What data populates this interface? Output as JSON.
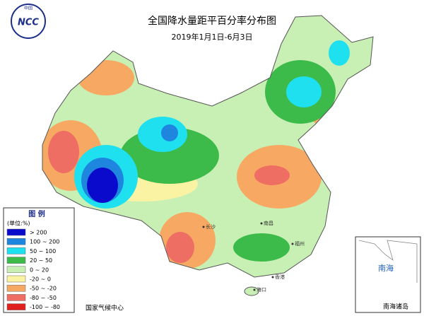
{
  "header": {
    "title": "全国降水量距平百分率分布图",
    "subtitle": "2019年1月1日-6月3日"
  },
  "logo": {
    "text": "NCC",
    "top": "中国"
  },
  "legend": {
    "title": "图 例",
    "unit": "(单位:%)",
    "items": [
      {
        "label": "> 200",
        "color": "#0a0acd"
      },
      {
        "label": "100 ~ 200",
        "color": "#1f86e0"
      },
      {
        "label": "50 ~ 100",
        "color": "#1fe0ee"
      },
      {
        "label": "20 ~ 50",
        "color": "#3dbb4a"
      },
      {
        "label": "0 ~ 20",
        "color": "#c9f0b4"
      },
      {
        "label": "-20 ~ 0",
        "color": "#fbf3a4"
      },
      {
        "label": "-50 ~ -20",
        "color": "#f7a963"
      },
      {
        "label": "-80 ~ -50",
        "color": "#ee6e64"
      },
      {
        "label": "-100 ~ -80",
        "color": "#e0201c"
      }
    ]
  },
  "cities": [
    "长沙",
    "南昌",
    "福州",
    "香港",
    "海口"
  ],
  "inset": {
    "sea": "南海",
    "islands": "南海诸岛"
  },
  "footer": "国家气候中心"
}
